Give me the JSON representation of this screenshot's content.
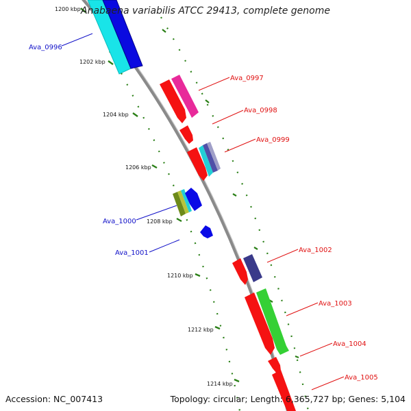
{
  "title": "Anabaena variabilis ATCC 29413, complete genome",
  "accession": "Accession: NC_007413",
  "topology": "Topology: circular; Length: 6,365,727 bp; Genes: 5,104",
  "colors": {
    "backbone": "#8c8c8c",
    "dots": "#2a7f16",
    "forward_label": "#e01010",
    "reverse_label": "#1010c8"
  },
  "ticks": [
    {
      "label": "1200 kbp"
    },
    {
      "label": "1202 kbp"
    },
    {
      "label": "1204 kbp"
    },
    {
      "label": "1206 kbp"
    },
    {
      "label": "1208 kbp"
    },
    {
      "label": "1210 kbp"
    },
    {
      "label": "1212 kbp"
    },
    {
      "label": "1214 kbp"
    }
  ],
  "gene_labels": [
    {
      "text": "Ava_0996",
      "strand": "reverse"
    },
    {
      "text": "Ava_0997",
      "strand": "forward"
    },
    {
      "text": "Ava_0998",
      "strand": "forward"
    },
    {
      "text": "Ava_0999",
      "strand": "forward"
    },
    {
      "text": "Ava_1000",
      "strand": "reverse"
    },
    {
      "text": "Ava_1001",
      "strand": "reverse"
    },
    {
      "text": "Ava_1002",
      "strand": "forward"
    },
    {
      "text": "Ava_1003",
      "strand": "forward"
    },
    {
      "text": "Ava_1004",
      "strand": "forward"
    },
    {
      "text": "Ava_1005",
      "strand": "forward"
    }
  ]
}
